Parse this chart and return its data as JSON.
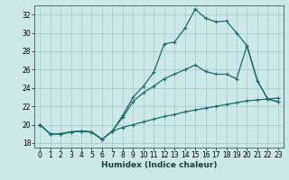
{
  "title": "",
  "xlabel": "Humidex (Indice chaleur)",
  "bg_color": "#cce8e8",
  "grid_color": "#aacccc",
  "line_color": "#1a6b6b",
  "xlim": [
    -0.5,
    23.5
  ],
  "ylim": [
    17.5,
    33.0
  ],
  "yticks": [
    18,
    20,
    22,
    24,
    26,
    28,
    30,
    32
  ],
  "xticks": [
    0,
    1,
    2,
    3,
    4,
    5,
    6,
    7,
    8,
    9,
    10,
    11,
    12,
    13,
    14,
    15,
    16,
    17,
    18,
    19,
    20,
    21,
    22,
    23
  ],
  "line1_x": [
    0,
    1,
    2,
    3,
    4,
    5,
    6,
    7,
    8,
    9,
    10,
    11,
    12,
    13,
    14,
    15,
    16,
    17,
    18,
    19,
    20,
    21,
    22,
    23
  ],
  "line1_y": [
    20.0,
    19.0,
    19.0,
    19.2,
    19.3,
    19.2,
    18.4,
    19.3,
    21.0,
    23.0,
    24.2,
    25.7,
    28.8,
    29.0,
    30.5,
    32.6,
    31.6,
    31.2,
    31.3,
    30.0,
    28.6,
    24.8,
    22.8,
    22.5
  ],
  "line2_x": [
    0,
    1,
    2,
    3,
    4,
    5,
    6,
    7,
    8,
    9,
    10,
    11,
    12,
    13,
    14,
    15,
    16,
    17,
    18,
    19,
    20,
    21,
    22,
    23
  ],
  "line2_y": [
    20.0,
    19.0,
    19.0,
    19.2,
    19.3,
    19.2,
    18.4,
    19.3,
    20.8,
    22.5,
    23.5,
    24.2,
    25.0,
    25.5,
    26.0,
    26.5,
    25.8,
    25.5,
    25.5,
    25.0,
    28.6,
    24.8,
    22.8,
    22.5
  ],
  "line3_x": [
    0,
    1,
    2,
    3,
    4,
    5,
    6,
    7,
    8,
    9,
    10,
    11,
    12,
    13,
    14,
    15,
    16,
    17,
    18,
    19,
    20,
    21,
    22,
    23
  ],
  "line3_y": [
    20.0,
    19.0,
    19.0,
    19.2,
    19.3,
    19.2,
    18.4,
    19.3,
    19.7,
    20.0,
    20.3,
    20.6,
    20.9,
    21.1,
    21.4,
    21.6,
    21.8,
    22.0,
    22.2,
    22.4,
    22.6,
    22.7,
    22.8,
    22.9
  ]
}
